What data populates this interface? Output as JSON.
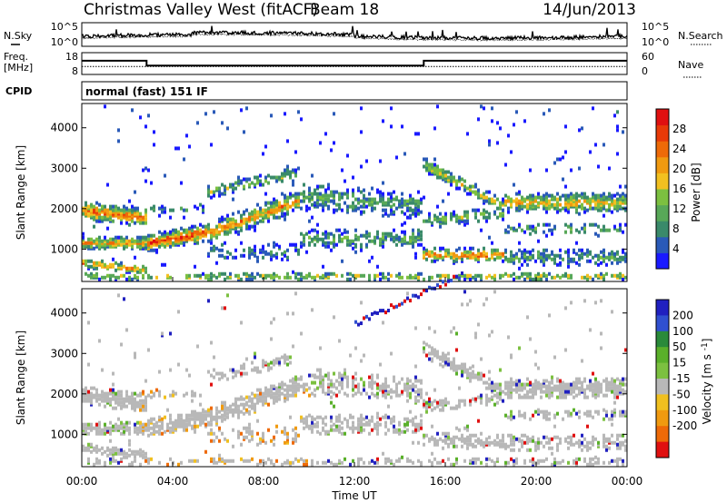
{
  "header": {
    "title": "Christmas Valley West (fitACF)",
    "beam": "Beam 18",
    "date": "14/Jun/2013"
  },
  "top_panels": {
    "nsky_label": "N.Sky",
    "nsky_ticks": [
      "10^5",
      "10^0"
    ],
    "nsearch_label": "N.Search",
    "nsearch_ticks": [
      "10^5",
      "10^0"
    ],
    "freq_label": "Freq.",
    "freq_unit": "[MHz]",
    "freq_ticks": [
      "18",
      "8"
    ],
    "nave_label": "Nave",
    "nave_ticks": [
      "60",
      "0"
    ],
    "cpid_label": "CPID",
    "cpid_value": "normal (fast) 151 IF"
  },
  "chart_data": [
    {
      "type": "line",
      "panel": "noise",
      "x": [
        0,
        24
      ],
      "ylabel_left": "N.Sky",
      "ylabel_right": "N.Search",
      "y_scale": "log"
    },
    {
      "type": "line",
      "panel": "frequency-nave",
      "series": [
        {
          "name": "Freq.",
          "x": [
            0,
            2.85,
            2.85,
            15.05,
            15.05,
            24
          ],
          "values": [
            14.3,
            14.3,
            12.1,
            12.1,
            14.3,
            14.3
          ]
        },
        {
          "name": "Nave",
          "x": [
            0,
            24
          ],
          "values": [
            22,
            22
          ]
        }
      ]
    },
    {
      "type": "heatmap",
      "panel": "power",
      "ylabel": "Slant Range [km]",
      "y_ticks": [
        1000,
        2000,
        3000,
        4000
      ],
      "colorbar_label": "Power [dB]",
      "colorbar_ticks": [
        4,
        8,
        12,
        16,
        20,
        24,
        28
      ],
      "colors": [
        "#1a1aff",
        "#2a5ab8",
        "#3a8a6a",
        "#58a858",
        "#7cc040",
        "#f2c020",
        "#f09a10",
        "#ee6a08",
        "#e83a08",
        "#e01010"
      ]
    },
    {
      "type": "heatmap",
      "panel": "velocity",
      "ylabel": "Slant Range [km]",
      "y_ticks": [
        1000,
        2000,
        3000,
        4000
      ],
      "colorbar_label": "Velocity [m s^-1]",
      "colorbar_ticks": [
        "200",
        "100",
        "50",
        "15",
        "-15",
        "-50",
        "-100",
        "-200"
      ],
      "colors": [
        "#2020c0",
        "#3050d0",
        "#2a8a3a",
        "#5ab02a",
        "#7cc040",
        "#b8b8b8",
        "#f0c020",
        "#f09a10",
        "#ee6a08",
        "#e01010"
      ]
    }
  ],
  "x_axis": {
    "label": "Time UT",
    "ticks": [
      "00:00",
      "04:00",
      "08:00",
      "12:00",
      "16:00",
      "20:00",
      "00:00"
    ]
  }
}
